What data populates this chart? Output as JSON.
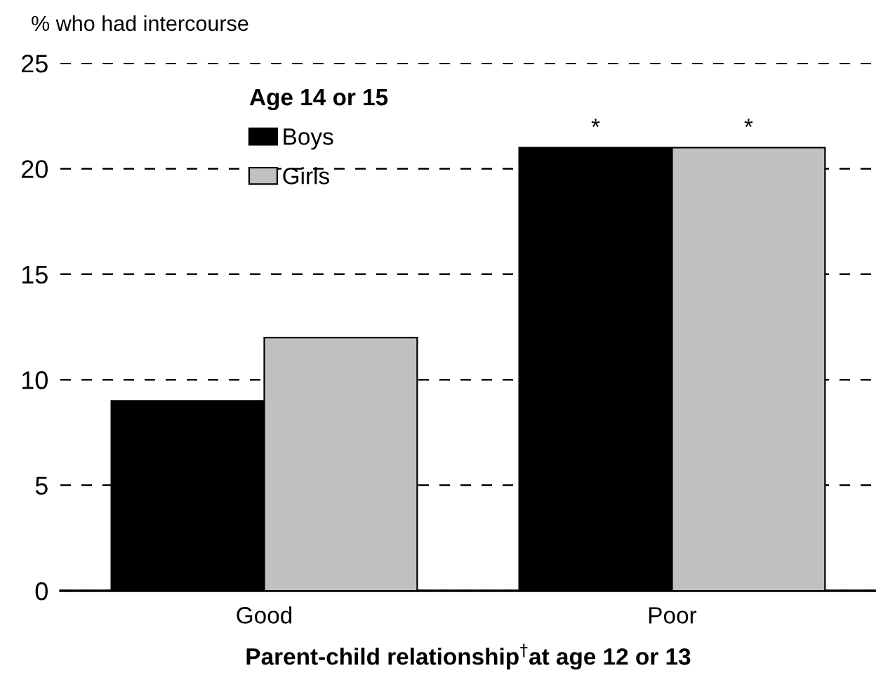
{
  "chart_data": {
    "type": "bar",
    "ylabel": "% who had intercourse",
    "xlabel": "Parent-child relationship$^{†}$at age 12 or 13",
    "legend_title": "Age 14 or 15",
    "legend": "top left",
    "grid": "y",
    "line_style": "dashed",
    "categories": [
      "Good",
      "Poor"
    ],
    "series": [
      {
        "name": "Boys",
        "color": "#000000",
        "values": [
          9,
          21
        ]
      },
      {
        "name": "Girls",
        "color": "#c0c0c0",
        "values": [
          12,
          21
        ]
      }
    ],
    "ylim": [
      0,
      25
    ],
    "yticks": [
      0,
      5,
      10,
      15,
      20,
      25
    ],
    "annotations": [
      "*",
      "*"
    ]
  }
}
